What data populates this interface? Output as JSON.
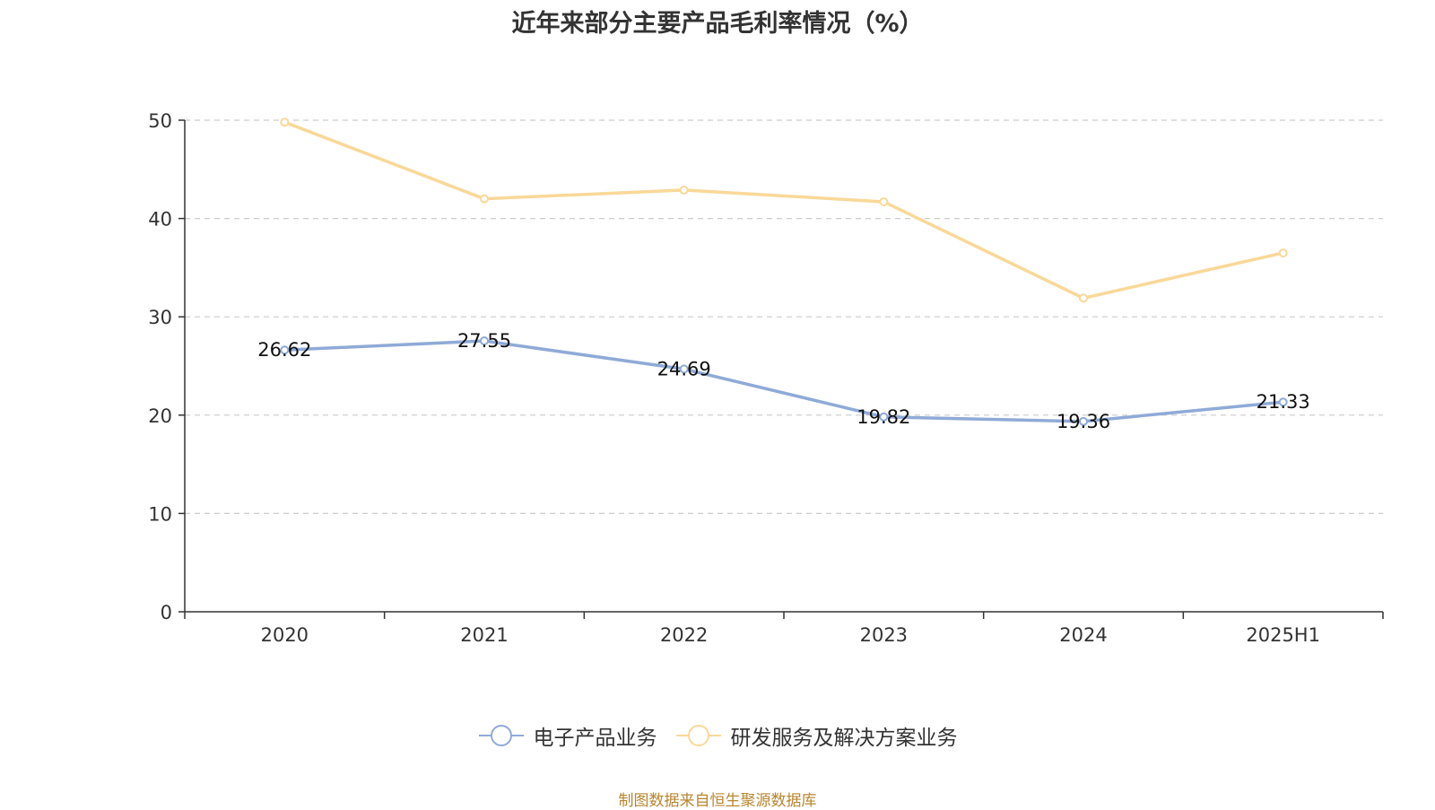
{
  "chart_data": {
    "type": "line",
    "title": "近年来部分主要产品毛利率情况（%）",
    "categories": [
      "2020",
      "2021",
      "2022",
      "2023",
      "2024",
      "2025H1"
    ],
    "series": [
      {
        "name": "电子产品业务",
        "values": [
          26.62,
          27.55,
          24.69,
          19.82,
          19.36,
          21.33
        ],
        "color": "#8eaad7",
        "labels_shown": true
      },
      {
        "name": "研发服务及解决方案业务",
        "values": [
          49.8,
          42.0,
          42.9,
          41.7,
          31.9,
          36.5
        ],
        "color": "#f9d898",
        "labels_shown": false
      }
    ],
    "ylim": [
      0,
      50
    ],
    "yticks": [
      0,
      10,
      20,
      30,
      40,
      50
    ],
    "grid": true,
    "legend_position": "bottom"
  },
  "source_note": "制图数据来自恒生聚源数据库"
}
